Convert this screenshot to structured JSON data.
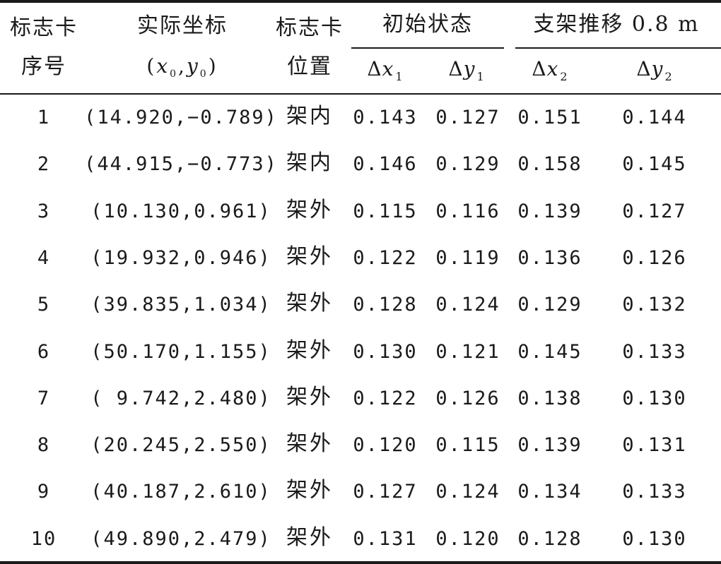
{
  "header": {
    "col1_line1": "标志卡",
    "col1_line2": "序号",
    "col2_line1": "实际坐标",
    "col2_coord": {
      "open": "(",
      "x": "x",
      "x_sub": "0",
      "sep": ",",
      "y": "y",
      "y_sub": "0",
      "close": ")"
    },
    "col3_line1": "标志卡",
    "col3_line2": "位置",
    "group1": "初始状态",
    "group2": "支架推移 0.8 m",
    "sub_dx1": {
      "delta": "Δ",
      "var": "x",
      "sub": "1"
    },
    "sub_dy1": {
      "delta": "Δ",
      "var": "y",
      "sub": "1"
    },
    "sub_dx2": {
      "delta": "Δ",
      "var": "x",
      "sub": "2"
    },
    "sub_dy2": {
      "delta": "Δ",
      "var": "y",
      "sub": "2"
    }
  },
  "rows": [
    {
      "id": "1",
      "coord": "(14.920,−0.789)",
      "pos": "架内",
      "dx1": "0.143",
      "dy1": "0.127",
      "dx2": "0.151",
      "dy2": "0.144"
    },
    {
      "id": "2",
      "coord": "(44.915,−0.773)",
      "pos": "架内",
      "dx1": "0.146",
      "dy1": "0.129",
      "dx2": "0.158",
      "dy2": "0.145"
    },
    {
      "id": "3",
      "coord": "(10.130,0.961)",
      "pos": "架外",
      "dx1": "0.115",
      "dy1": "0.116",
      "dx2": "0.139",
      "dy2": "0.127"
    },
    {
      "id": "4",
      "coord": "(19.932,0.946)",
      "pos": "架外",
      "dx1": "0.122",
      "dy1": "0.119",
      "dx2": "0.136",
      "dy2": "0.126"
    },
    {
      "id": "5",
      "coord": "(39.835,1.034)",
      "pos": "架外",
      "dx1": "0.128",
      "dy1": "0.124",
      "dx2": "0.129",
      "dy2": "0.132"
    },
    {
      "id": "6",
      "coord": "(50.170,1.155)",
      "pos": "架外",
      "dx1": "0.130",
      "dy1": "0.121",
      "dx2": "0.145",
      "dy2": "0.133"
    },
    {
      "id": "7",
      "coord": "( 9.742,2.480)",
      "pos": "架外",
      "dx1": "0.122",
      "dy1": "0.126",
      "dx2": "0.138",
      "dy2": "0.130"
    },
    {
      "id": "8",
      "coord": "(20.245,2.550)",
      "pos": "架外",
      "dx1": "0.120",
      "dy1": "0.115",
      "dx2": "0.139",
      "dy2": "0.131"
    },
    {
      "id": "9",
      "coord": "(40.187,2.610)",
      "pos": "架外",
      "dx1": "0.127",
      "dy1": "0.124",
      "dx2": "0.134",
      "dy2": "0.133"
    },
    {
      "id": "10",
      "coord": "(49.890,2.479)",
      "pos": "架外",
      "dx1": "0.131",
      "dy1": "0.120",
      "dx2": "0.128",
      "dy2": "0.130"
    }
  ]
}
